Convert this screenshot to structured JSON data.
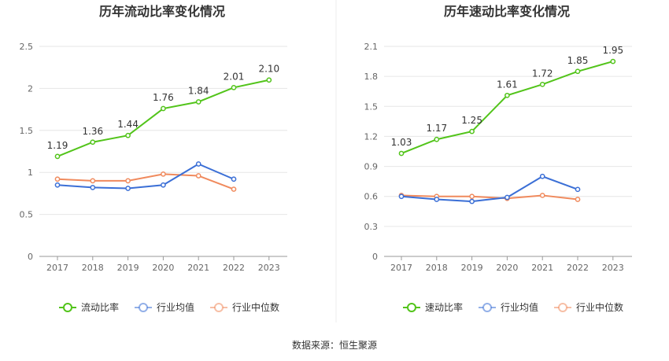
{
  "source_text": "数据来源：恒生聚源",
  "colors": {
    "main": "#52c41a",
    "avg": "#3b6fd6",
    "median": "#f08a5d"
  },
  "chart_data": [
    {
      "type": "line",
      "title": "历年流动比率变化情况",
      "categories": [
        "2017",
        "2018",
        "2019",
        "2020",
        "2021",
        "2022",
        "2023"
      ],
      "ylim": [
        0,
        2.5
      ],
      "yticks": [
        "0",
        "0.5",
        "1",
        "1.5",
        "2",
        "2.5"
      ],
      "ytick_values": [
        0,
        0.5,
        1,
        1.5,
        2,
        2.5
      ],
      "legend_position": "bottom",
      "series": [
        {
          "name": "流动比率",
          "color": "#52c41a",
          "values": [
            1.19,
            1.36,
            1.44,
            1.76,
            1.84,
            2.01,
            2.1
          ],
          "labels": [
            "1.19",
            "1.36",
            "1.44",
            "1.76",
            "1.84",
            "2.01",
            "2.10"
          ]
        },
        {
          "name": "行业均值",
          "color": "#3b6fd6",
          "values": [
            0.85,
            0.82,
            0.81,
            0.85,
            1.1,
            0.92,
            null
          ]
        },
        {
          "name": "行业中位数",
          "color": "#f08a5d",
          "values": [
            0.92,
            0.9,
            0.9,
            0.98,
            0.96,
            0.8,
            null
          ]
        }
      ]
    },
    {
      "type": "line",
      "title": "历年速动比率变化情况",
      "categories": [
        "2017",
        "2018",
        "2019",
        "2020",
        "2021",
        "2022",
        "2023"
      ],
      "ylim": [
        0,
        2.1
      ],
      "yticks": [
        "0",
        "0.3",
        "0.6",
        "0.9",
        "1.2",
        "1.5",
        "1.8",
        "2.1"
      ],
      "ytick_values": [
        0,
        0.3,
        0.6,
        0.9,
        1.2,
        1.5,
        1.8,
        2.1
      ],
      "legend_position": "bottom",
      "series": [
        {
          "name": "速动比率",
          "color": "#52c41a",
          "values": [
            1.03,
            1.17,
            1.25,
            1.61,
            1.72,
            1.85,
            1.95
          ],
          "labels": [
            "1.03",
            "1.17",
            "1.25",
            "1.61",
            "1.72",
            "1.85",
            "1.95"
          ]
        },
        {
          "name": "行业均值",
          "color": "#3b6fd6",
          "values": [
            0.6,
            0.57,
            0.55,
            0.59,
            0.8,
            0.67,
            null
          ]
        },
        {
          "name": "行业中位数",
          "color": "#f08a5d",
          "values": [
            0.61,
            0.6,
            0.6,
            0.58,
            0.61,
            0.57,
            null
          ]
        }
      ]
    }
  ]
}
